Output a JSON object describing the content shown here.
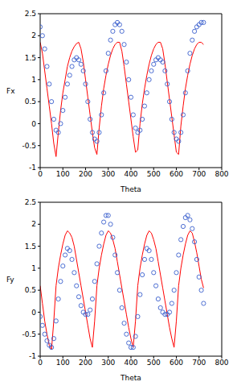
{
  "chart_data": [
    {
      "type": "line",
      "x_label": "Theta",
      "y_label": "Fx",
      "x": [
        0,
        10,
        20,
        30,
        40,
        50,
        60,
        70,
        80,
        90,
        100,
        110,
        120,
        130,
        140,
        150,
        160,
        170,
        180,
        190,
        200,
        210,
        220,
        230,
        240,
        250,
        260,
        270,
        280,
        290,
        300,
        310,
        320,
        330,
        340,
        350,
        360,
        370,
        380,
        390,
        400,
        410,
        420,
        430,
        440,
        450,
        460,
        470,
        480,
        490,
        500,
        510,
        520,
        530,
        540,
        550,
        560,
        570,
        580,
        590,
        600,
        610,
        620,
        630,
        640,
        650,
        660,
        670,
        680,
        690,
        700,
        710,
        720
      ],
      "xlim": [
        0,
        800
      ],
      "xticks": [
        0,
        100,
        200,
        300,
        400,
        500,
        600,
        700,
        800
      ],
      "ylim": [
        -1,
        2.5
      ],
      "yticks": [
        -1,
        -0.5,
        0,
        0.5,
        1,
        1.5,
        2,
        2.5
      ],
      "grid": false,
      "series": [
        {
          "type": "scatter",
          "marker": "circle",
          "color": "#3a5fcd",
          "values": [
            2.2,
            2.0,
            1.7,
            1.3,
            0.9,
            0.5,
            0.1,
            -0.15,
            -0.2,
            0.0,
            0.3,
            0.6,
            0.9,
            1.1,
            1.3,
            1.45,
            1.5,
            1.45,
            1.35,
            1.2,
            0.9,
            0.5,
            0.1,
            -0.2,
            -0.35,
            -0.4,
            -0.2,
            0.2,
            0.7,
            1.2,
            1.6,
            1.9,
            2.1,
            2.25,
            2.3,
            2.25,
            2.1,
            1.8,
            1.4,
            1.0,
            0.6,
            0.2,
            -0.1,
            -0.2,
            -0.15,
            0.1,
            0.4,
            0.7,
            1.0,
            1.2,
            1.35,
            1.45,
            1.5,
            1.45,
            1.4,
            1.2,
            0.9,
            0.5,
            0.1,
            -0.2,
            -0.35,
            -0.4,
            -0.2,
            0.2,
            0.7,
            1.2,
            1.6,
            1.9,
            2.1,
            2.2,
            2.25,
            2.3,
            2.3
          ]
        },
        {
          "type": "line",
          "color": "#ff0000",
          "values": [
            1.85,
            1.6,
            1.2,
            0.8,
            0.4,
            0.0,
            -0.45,
            -0.75,
            -0.2,
            0.3,
            0.7,
            1.0,
            1.3,
            1.5,
            1.65,
            1.75,
            1.82,
            1.85,
            1.7,
            1.4,
            1.0,
            0.6,
            0.2,
            -0.2,
            -0.55,
            -0.7,
            -0.1,
            0.4,
            0.8,
            1.1,
            1.35,
            1.55,
            1.7,
            1.8,
            1.85,
            1.85,
            1.65,
            1.3,
            0.9,
            0.5,
            0.1,
            -0.3,
            -0.65,
            -0.6,
            0.0,
            0.45,
            0.8,
            1.1,
            1.35,
            1.55,
            1.7,
            1.8,
            1.85,
            1.85,
            1.7,
            1.35,
            0.95,
            0.55,
            0.15,
            -0.25,
            -0.65,
            -0.7,
            -0.05,
            0.4,
            0.8,
            1.1,
            1.35,
            1.55,
            1.7,
            1.8,
            1.85,
            1.85,
            1.8
          ]
        }
      ]
    },
    {
      "type": "line",
      "x_label": "Theta",
      "y_label": "Fy",
      "x": [
        0,
        10,
        20,
        30,
        40,
        50,
        60,
        70,
        80,
        90,
        100,
        110,
        120,
        130,
        140,
        150,
        160,
        170,
        180,
        190,
        200,
        210,
        220,
        230,
        240,
        250,
        260,
        270,
        280,
        290,
        300,
        310,
        320,
        330,
        340,
        350,
        360,
        370,
        380,
        390,
        400,
        410,
        420,
        430,
        440,
        450,
        460,
        470,
        480,
        490,
        500,
        510,
        520,
        530,
        540,
        550,
        560,
        570,
        580,
        590,
        600,
        610,
        620,
        630,
        640,
        650,
        660,
        670,
        680,
        690,
        700,
        710,
        720
      ],
      "xlim": [
        0,
        800
      ],
      "xticks": [
        0,
        100,
        200,
        300,
        400,
        500,
        600,
        700,
        800
      ],
      "ylim": [
        -1,
        2.5
      ],
      "yticks": [
        -1,
        -0.5,
        0,
        0.5,
        1,
        1.5,
        2,
        2.5
      ],
      "grid": false,
      "series": [
        {
          "type": "scatter",
          "marker": "circle",
          "color": "#3a5fcd",
          "values": [
            -0.1,
            -0.3,
            -0.5,
            -0.65,
            -0.75,
            -0.8,
            -0.6,
            -0.2,
            0.3,
            0.7,
            1.05,
            1.3,
            1.45,
            1.4,
            1.2,
            0.9,
            0.6,
            0.35,
            0.15,
            0.0,
            -0.05,
            -0.05,
            0.05,
            0.3,
            0.7,
            1.1,
            1.5,
            1.8,
            2.05,
            2.2,
            2.2,
            2.0,
            1.7,
            1.3,
            0.9,
            0.5,
            0.1,
            -0.25,
            -0.5,
            -0.7,
            -0.8,
            -0.8,
            -0.55,
            -0.1,
            0.4,
            0.85,
            1.2,
            1.45,
            1.4,
            1.2,
            0.9,
            0.6,
            0.3,
            0.1,
            0.0,
            -0.05,
            -0.05,
            0.0,
            0.2,
            0.5,
            0.9,
            1.3,
            1.65,
            1.95,
            2.15,
            2.2,
            2.1,
            1.9,
            1.6,
            1.2,
            0.8,
            0.5,
            0.2
          ]
        },
        {
          "type": "line",
          "color": "#ff0000",
          "values": [
            0.6,
            0.2,
            -0.2,
            -0.5,
            -0.75,
            -0.85,
            -0.2,
            0.6,
            1.0,
            1.3,
            1.55,
            1.75,
            1.85,
            1.8,
            1.7,
            1.5,
            1.2,
            0.9,
            0.6,
            0.3,
            0.0,
            -0.3,
            -0.6,
            -0.8,
            -0.2,
            0.6,
            1.0,
            1.3,
            1.55,
            1.75,
            1.85,
            1.8,
            1.65,
            1.45,
            1.15,
            0.85,
            0.55,
            0.25,
            -0.05,
            -0.35,
            -0.6,
            -0.8,
            -0.2,
            0.6,
            1.0,
            1.3,
            1.55,
            1.75,
            1.85,
            1.8,
            1.65,
            1.45,
            1.15,
            0.85,
            0.55,
            0.25,
            -0.05,
            -0.35,
            -0.6,
            -0.8,
            -0.2,
            0.6,
            1.0,
            1.3,
            1.55,
            1.75,
            1.85,
            1.8,
            1.6,
            1.35,
            1.05,
            0.75,
            0.55
          ]
        }
      ]
    }
  ]
}
